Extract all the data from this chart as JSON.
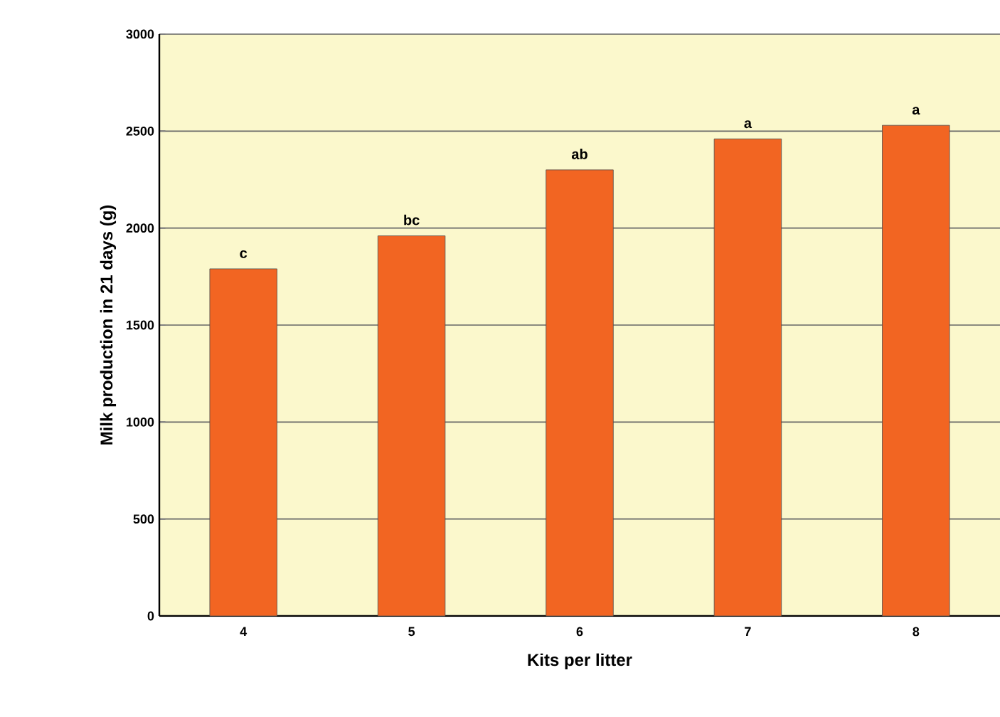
{
  "chart_data": {
    "type": "bar",
    "xlabel": "Kits per litter",
    "ylabel": "Milk production in 21 days (g)",
    "categories": [
      "4",
      "5",
      "6",
      "7",
      "8"
    ],
    "values": [
      1790,
      1960,
      2300,
      2460,
      2530
    ],
    "color": "#f26522",
    "ylim": [
      0,
      3000
    ],
    "yticks": [
      0,
      500,
      1000,
      1500,
      2000,
      2500,
      3000
    ],
    "grid": "y",
    "annotations": [
      {
        "text": "c",
        "x": "4",
        "y": 1790
      },
      {
        "text": "bc",
        "x": "5",
        "y": 1960
      },
      {
        "text": "ab",
        "x": "6",
        "y": 2300
      },
      {
        "text": "a",
        "x": "7",
        "y": 2460
      },
      {
        "text": "a",
        "x": "8",
        "y": 2530
      }
    ]
  }
}
